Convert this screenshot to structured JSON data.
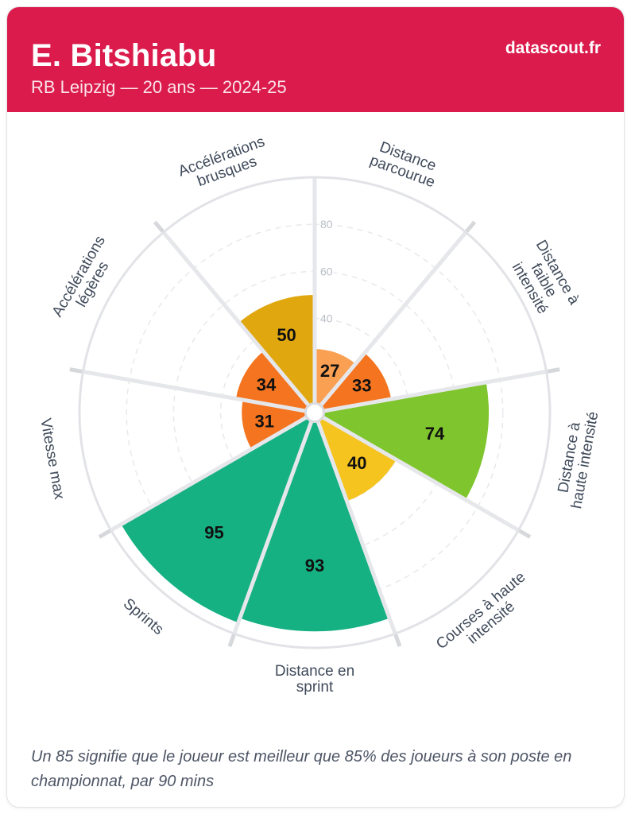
{
  "header": {
    "title": "E. Bitshiabu",
    "subtitle": "RB Leipzig — 20 ans — 2024-25",
    "logo": "datascout.fr"
  },
  "footer": {
    "note": "Un 85 signifie que le joueur est meilleur que 85% des joueurs à son poste en championnat, par 90 mins"
  },
  "theme": {
    "page_bg": "#ffffff",
    "card_bg": "#ffffff",
    "card_border": "#e3e4e8",
    "header_bg": "#da1b4c",
    "title_color": "#ffffff",
    "subtitle_color": "rgba(255,255,255,0.88)",
    "label_color": "#3f4a5a",
    "tick_color": "#b9bdc6",
    "value_color": "#111111",
    "footer_color": "#4d5565",
    "grid_color": "#e8e9ed",
    "spoke_color": "#e6e7eb",
    "spoke_ext_color": "#d7d8dc",
    "outer_ring_color": "#e2e3e7",
    "center_dot_fill": "#ffffff",
    "center_dot_stroke": "#dadbdf"
  },
  "chart_data": {
    "type": "pie",
    "variant": "pizza-percentile-polar-bar",
    "description": "9 slices of 40° each starting at 12 o'clock; slice radius = percentile value (0-100)",
    "rlim": [
      0,
      100
    ],
    "slice_angle_deg": 40,
    "first_slice_center_deg": 20,
    "grid": "dashed-circles",
    "rings": [
      20,
      40,
      60,
      80
    ],
    "tick_labels": [
      "40",
      "60",
      "80"
    ],
    "categories": [
      "Distance parcourue",
      "Distance à faible intensité",
      "Distance à haute intensité",
      "Courses à haute intensité",
      "Distance en sprint",
      "Sprints",
      "Vitesse max",
      "Accélérations légères",
      "Accélérations brusques"
    ],
    "values": [
      27,
      33,
      74,
      40,
      93,
      95,
      31,
      34,
      50
    ],
    "colors": [
      "#FAA053",
      "#F4741F",
      "#7FC52D",
      "#F6C41F",
      "#16B183",
      "#16B183",
      "#F4741F",
      "#F4741F",
      "#E0A70F"
    ],
    "label_lines": [
      [
        "Distance",
        "parcourue"
      ],
      [
        "Distance à",
        "faible",
        "intensité"
      ],
      [
        "Distance à",
        "haute intensité"
      ],
      [
        "Courses à haute",
        "intensité"
      ],
      [
        "Distance en",
        "sprint"
      ],
      [
        "Sprints"
      ],
      [
        "Vitesse max"
      ],
      [
        "Accélérations",
        "légères"
      ],
      [
        "Accélérations",
        "brusques"
      ]
    ]
  }
}
